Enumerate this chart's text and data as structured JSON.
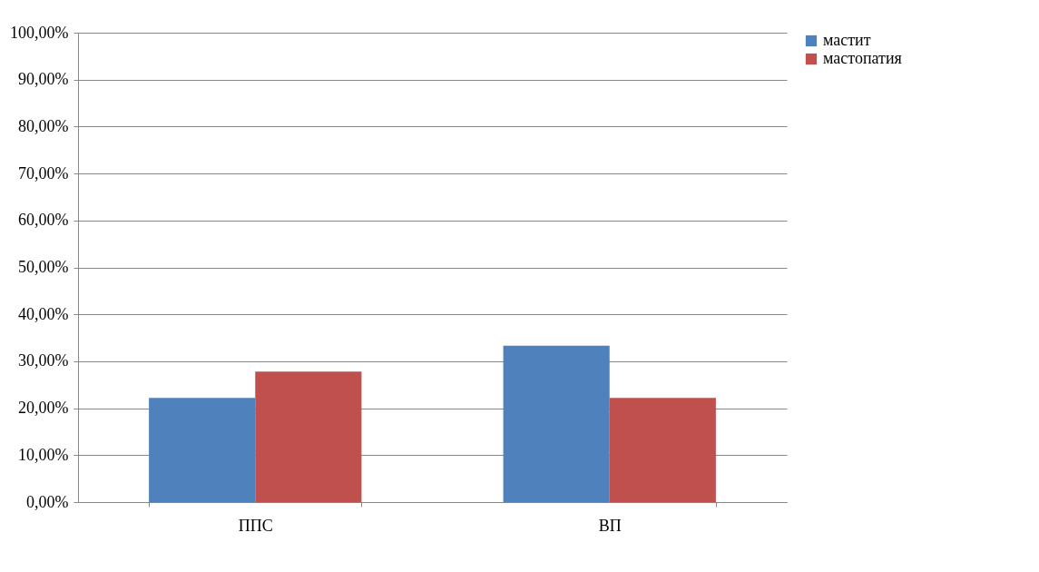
{
  "chart_data": {
    "type": "bar",
    "categories": [
      "ППС",
      "ВП"
    ],
    "series": [
      {
        "name": "мастит",
        "color": "#4f81bd",
        "values": [
          22.2,
          33.3
        ]
      },
      {
        "name": "мастопатия",
        "color": "#c0504d",
        "values": [
          27.8,
          22.2
        ]
      }
    ],
    "ylim": [
      0,
      100
    ],
    "yticks": [
      {
        "value": 0,
        "label": "0,00%"
      },
      {
        "value": 10,
        "label": "10,00%"
      },
      {
        "value": 20,
        "label": "20,00%"
      },
      {
        "value": 30,
        "label": "30,00%"
      },
      {
        "value": 40,
        "label": "40,00%"
      },
      {
        "value": 50,
        "label": "50,00%"
      },
      {
        "value": 60,
        "label": "60,00%"
      },
      {
        "value": 70,
        "label": "70,00%"
      },
      {
        "value": 80,
        "label": "80,00%"
      },
      {
        "value": 90,
        "label": "90,00%"
      },
      {
        "value": 100,
        "label": "100,00%"
      }
    ],
    "grid": "y",
    "legend": "right"
  }
}
